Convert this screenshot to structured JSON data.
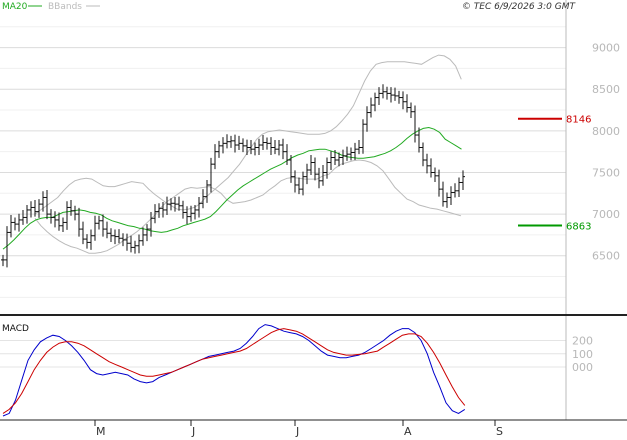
{
  "chart_data": [
    {
      "type": "ohlc",
      "panel": "price",
      "legend": [
        {
          "label": "MA20",
          "color": "#22aa22"
        },
        {
          "label": "BBands",
          "color": "#bbbbbb"
        }
      ],
      "copyright": "© TEC 6/9/2026 3:0 GMT",
      "y_ticks": [
        "9000",
        "8500",
        "8000",
        "7500",
        "7000",
        "6500"
      ],
      "y_tick_values": [
        9000,
        8500,
        8000,
        7500,
        7000,
        6500
      ],
      "ylim": [
        5800,
        9500
      ],
      "x_labels": [
        "M",
        "J",
        "J",
        "A",
        "S"
      ],
      "x_label_indices": [
        23,
        47,
        73,
        100,
        123
      ],
      "grid": true,
      "n_bars": 128,
      "close": [
        6450,
        6780,
        6900,
        6880,
        6930,
        6960,
        7050,
        7080,
        7030,
        7120,
        7200,
        7000,
        6960,
        6930,
        6860,
        6900,
        7080,
        7040,
        7000,
        6820,
        6700,
        6660,
        6740,
        6890,
        6920,
        6820,
        6770,
        6740,
        6730,
        6710,
        6690,
        6650,
        6600,
        6620,
        6680,
        6750,
        6820,
        6950,
        7030,
        7070,
        7050,
        7120,
        7130,
        7120,
        7100,
        7020,
        6970,
        7010,
        7050,
        7130,
        7210,
        7350,
        7600,
        7750,
        7820,
        7850,
        7870,
        7880,
        7830,
        7850,
        7820,
        7800,
        7780,
        7800,
        7830,
        7860,
        7850,
        7800,
        7780,
        7830,
        7750,
        7650,
        7450,
        7350,
        7300,
        7450,
        7530,
        7620,
        7480,
        7400,
        7500,
        7620,
        7680,
        7650,
        7680,
        7700,
        7720,
        7740,
        7780,
        7800,
        8080,
        8220,
        8310,
        8400,
        8450,
        8470,
        8450,
        8430,
        8420,
        8400,
        8350,
        8280,
        8230,
        7950,
        7800,
        7650,
        7580,
        7500,
        7460,
        7300,
        7150,
        7200,
        7260,
        7280,
        7380,
        7450
      ],
      "ma20": [
        6580,
        6630,
        6690,
        6760,
        6830,
        6890,
        6930,
        6950,
        6960,
        6960,
        6990,
        7020,
        7030,
        7040,
        7050,
        7040,
        7020,
        7010,
        6990,
        6950,
        6920,
        6900,
        6880,
        6860,
        6850,
        6830,
        6820,
        6800,
        6790,
        6780,
        6790,
        6810,
        6830,
        6860,
        6880,
        6900,
        6920,
        6940,
        6970,
        7030,
        7100,
        7170,
        7230,
        7290,
        7340,
        7380,
        7420,
        7460,
        7500,
        7540,
        7570,
        7600,
        7640,
        7680,
        7710,
        7730,
        7760,
        7770,
        7780,
        7780,
        7760,
        7740,
        7710,
        7690,
        7680,
        7670,
        7670,
        7680,
        7690,
        7710,
        7730,
        7760,
        7800,
        7850,
        7910,
        7960,
        8000,
        8030,
        8040,
        8020,
        7980,
        7900,
        7860,
        7820,
        7780
      ],
      "ma20_start_index": 0,
      "bb_upper": [
        7000,
        7050,
        7100,
        7150,
        7200,
        7280,
        7350,
        7400,
        7420,
        7430,
        7420,
        7380,
        7340,
        7330,
        7330,
        7350,
        7370,
        7390,
        7380,
        7370,
        7300,
        7240,
        7190,
        7140,
        7100,
        7060,
        7050,
        7060,
        7080,
        7120,
        7200,
        7260,
        7320,
        7380,
        7440,
        7520,
        7600,
        7700,
        7800,
        7900,
        7960,
        7990,
        8000,
        8010,
        8000,
        7990,
        7980,
        7970,
        7960,
        7960,
        7960,
        7970,
        8000,
        8050,
        8120,
        8200,
        8300,
        8450,
        8600,
        8720,
        8800,
        8820,
        8830,
        8830,
        8830,
        8830,
        8820,
        8810,
        8800,
        8840,
        8880,
        8910,
        8900,
        8860,
        8780,
        8620
      ],
      "bb_lower": [
        6950,
        6860,
        6790,
        6730,
        6680,
        6640,
        6610,
        6590,
        6560,
        6530,
        6530,
        6540,
        6560,
        6600,
        6640,
        6700,
        6740,
        6790,
        6850,
        6920,
        6990,
        7080,
        7150,
        7200,
        7250,
        7300,
        7320,
        7310,
        7320,
        7330,
        7300,
        7250,
        7170,
        7130,
        7140,
        7150,
        7170,
        7200,
        7230,
        7290,
        7340,
        7400,
        7430,
        7440,
        7430,
        7420,
        7420,
        7420,
        7460,
        7480,
        7550,
        7600,
        7620,
        7640,
        7650,
        7640,
        7620,
        7580,
        7520,
        7420,
        7320,
        7250,
        7180,
        7150,
        7110,
        7090,
        7070,
        7060,
        7040,
        7020,
        7000,
        6980
      ],
      "bb_start_index": 8,
      "markers": [
        {
          "label": "8146",
          "value": 8146,
          "color": "#cc0000"
        },
        {
          "label": "6863",
          "value": 6863,
          "color": "#009900"
        }
      ]
    },
    {
      "type": "line",
      "panel": "macd",
      "title": "MACD",
      "y_ticks": [
        "200",
        "100",
        "000"
      ],
      "y_tick_values": [
        200,
        100,
        0
      ],
      "ylim": [
        -400,
        370
      ],
      "grid": true,
      "series": [
        {
          "color": "#0000cc",
          "values": [
            -370,
            -350,
            -250,
            -100,
            50,
            130,
            190,
            220,
            240,
            230,
            200,
            160,
            110,
            50,
            -20,
            -50,
            -60,
            -50,
            -40,
            -50,
            -60,
            -90,
            -110,
            -120,
            -110,
            -80,
            -60,
            -40,
            -20,
            0,
            20,
            40,
            60,
            80,
            90,
            100,
            110,
            120,
            140,
            180,
            230,
            290,
            320,
            310,
            290,
            270,
            260,
            250,
            230,
            200,
            160,
            120,
            90,
            80,
            70,
            70,
            80,
            90,
            110,
            140,
            170,
            200,
            240,
            270,
            290,
            290,
            260,
            200,
            100,
            -40,
            -150,
            -270,
            -330,
            -350,
            -320
          ]
        },
        {
          "color": "#cc0000",
          "values": [
            -350,
            -320,
            -270,
            -200,
            -110,
            -20,
            50,
            110,
            150,
            180,
            190,
            190,
            180,
            160,
            130,
            100,
            70,
            40,
            20,
            0,
            -20,
            -40,
            -60,
            -70,
            -70,
            -60,
            -50,
            -40,
            -20,
            0,
            20,
            40,
            60,
            70,
            80,
            90,
            100,
            110,
            120,
            140,
            170,
            200,
            230,
            260,
            280,
            290,
            280,
            270,
            250,
            220,
            190,
            160,
            130,
            110,
            100,
            90,
            90,
            95,
            100,
            110,
            120,
            150,
            180,
            210,
            240,
            250,
            250,
            230,
            180,
            110,
            30,
            -60,
            -150,
            -230,
            -290
          ]
        }
      ]
    }
  ]
}
